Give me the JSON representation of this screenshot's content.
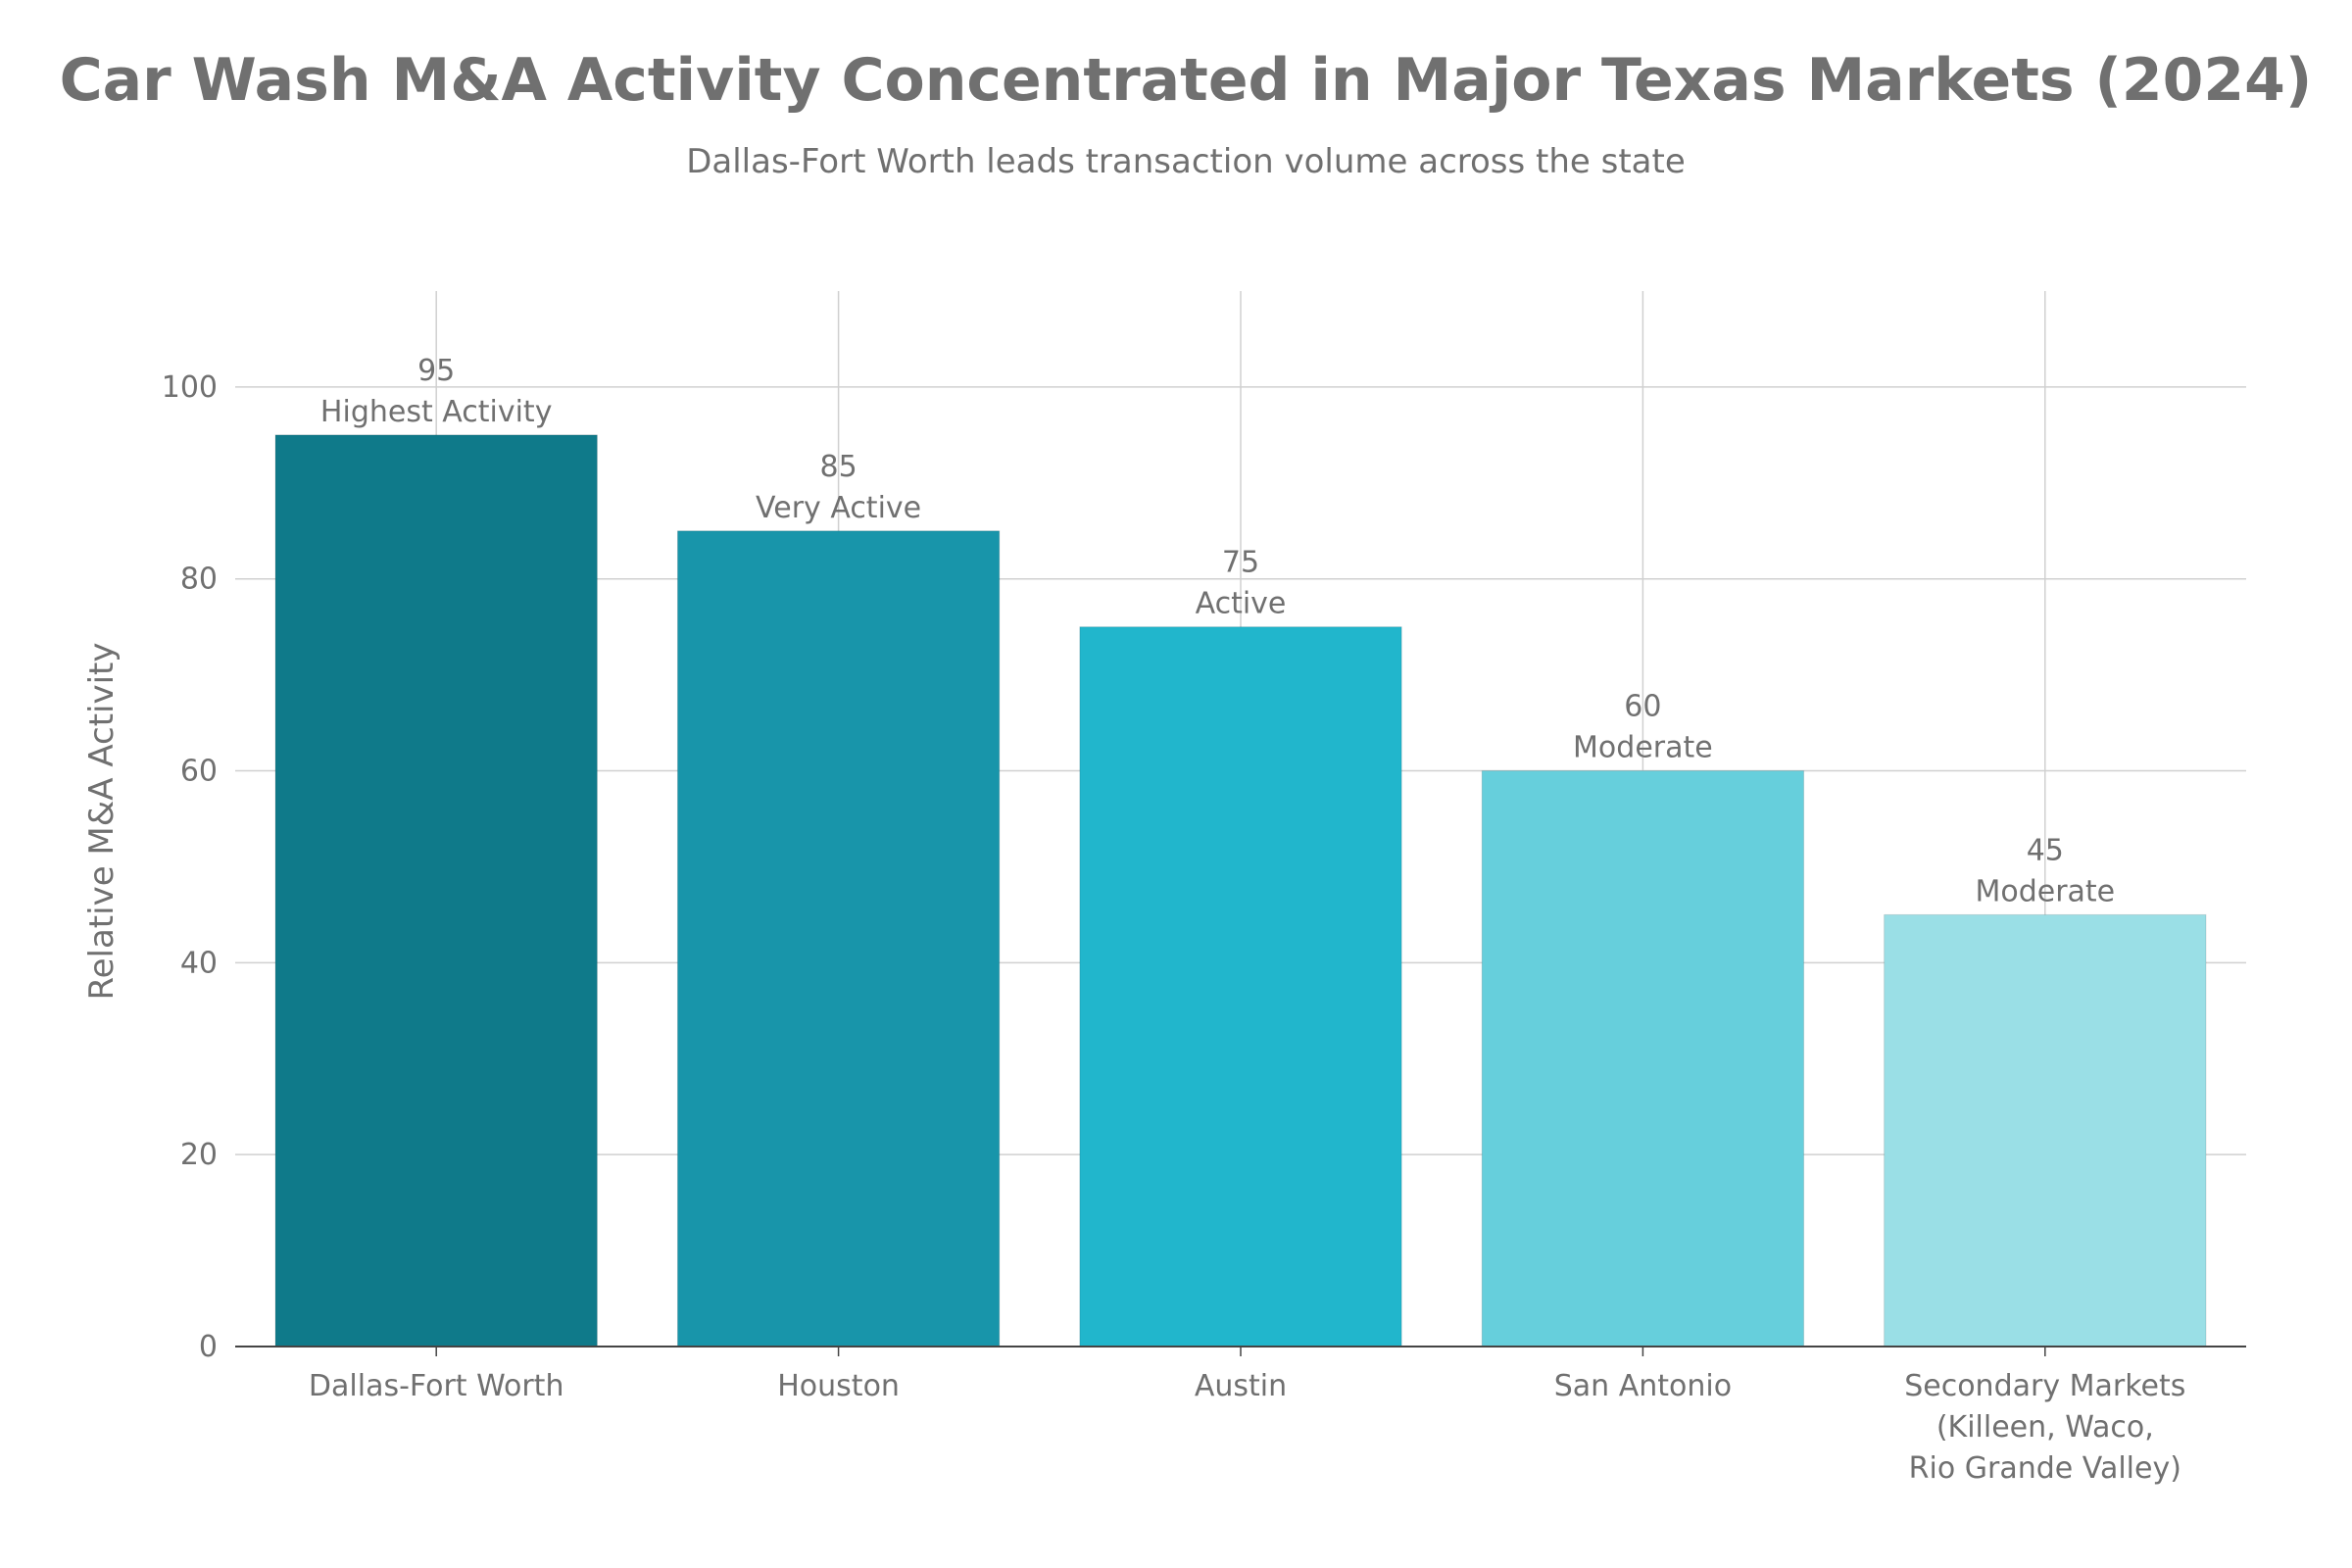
{
  "chart_data": {
    "type": "bar",
    "title": "Car Wash M&A Activity Concentrated in Major Texas Markets (2024)",
    "subtitle": "Dallas-Fort Worth leads transaction volume across the state",
    "xlabel": "",
    "ylabel": "Relative M&A Activity",
    "ylim": [
      0,
      110
    ],
    "yticks": [
      0,
      20,
      40,
      60,
      80,
      100
    ],
    "grid": true,
    "categories": [
      [
        "Dallas-Fort Worth"
      ],
      [
        "Houston"
      ],
      [
        "Austin"
      ],
      [
        "San Antonio"
      ],
      [
        "Secondary Markets",
        "(Killeen, Waco,",
        "Rio Grande Valley)"
      ]
    ],
    "values": [
      95,
      85,
      75,
      60,
      45
    ],
    "value_labels": [
      "95",
      "85",
      "75",
      "60",
      "45"
    ],
    "annotations": [
      "Highest Activity",
      "Very Active",
      "Active",
      "Moderate",
      "Moderate"
    ],
    "colors": [
      "#0f7a8a",
      "#1895aa",
      "#21b6cc",
      "#66cfdc",
      "#9adfe6"
    ]
  }
}
